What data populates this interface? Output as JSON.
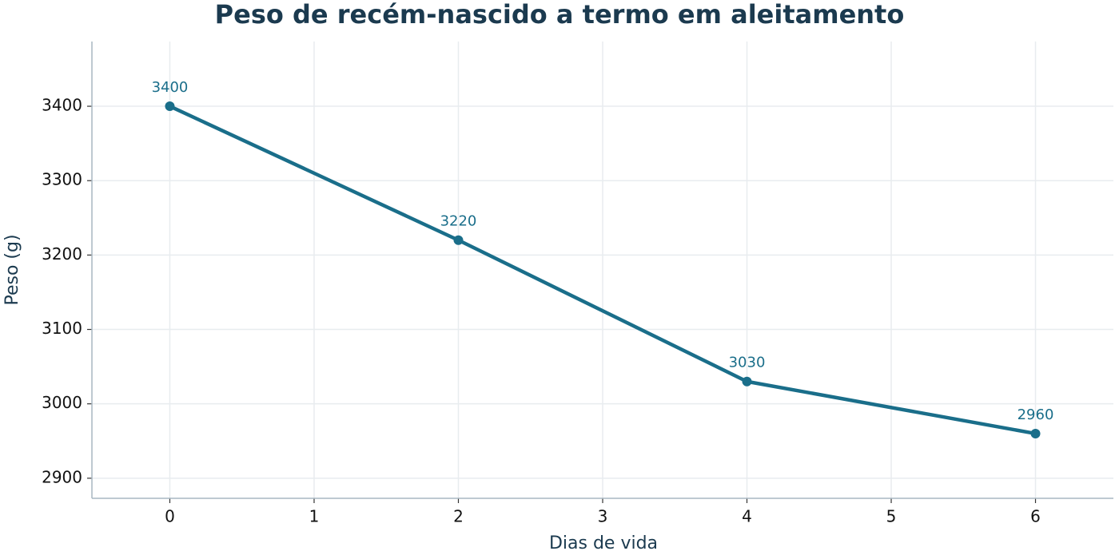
{
  "chart_data": {
    "type": "line",
    "title": "Peso de recém-nascido a termo em aleitamento",
    "x_label": "Dias de vida",
    "y_label": "Peso (g)",
    "x": [
      0,
      2,
      4,
      6
    ],
    "series": [
      {
        "name": "Peso",
        "color": "#1a6e8a",
        "values": [
          3400,
          3220,
          3030,
          2960
        ]
      }
    ],
    "xlim": [
      -0.54,
      6.54
    ],
    "xticks": [
      0,
      1,
      2,
      3,
      4,
      5,
      6
    ],
    "ylim": [
      2873,
      3487
    ],
    "yticks": [
      2900,
      3000,
      3100,
      3200,
      3300,
      3400
    ],
    "grid": true,
    "data_labels": true
  }
}
